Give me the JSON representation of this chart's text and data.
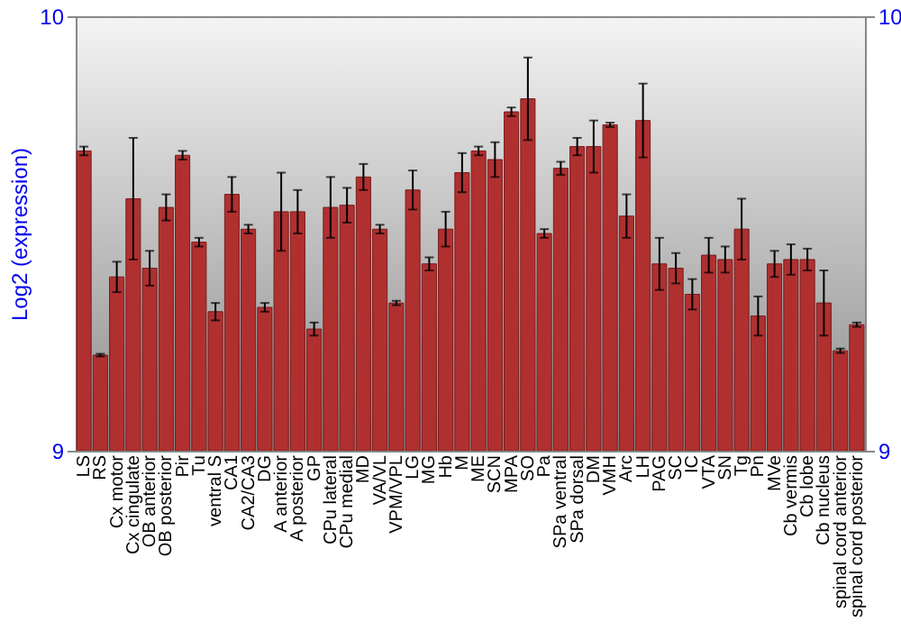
{
  "chart_data": {
    "type": "bar",
    "ylabel": "Log2 (expression)",
    "categories": [
      "LS",
      "RS",
      "Cx motor",
      "Cx cingulate",
      "OB anterior",
      "OB posterior",
      "Pir",
      "Tu",
      "ventral S",
      "CA1",
      "CA2/CA3",
      "DG",
      "A anterior",
      "A posterior",
      "GP",
      "CPu lateral",
      "CPu medial",
      "MD",
      "VA/VL",
      "VPM/VPL",
      "LG",
      "MG",
      "Hb",
      "M",
      "ME",
      "SCN",
      "MPA",
      "SO",
      "Pa",
      "SPa ventral",
      "SPa dorsal",
      "DM",
      "VMH",
      "Arc",
      "LH",
      "PAG",
      "SC",
      "IC",
      "VTA",
      "SN",
      "Tg",
      "Pn",
      "MVe",
      "Cb vermis",
      "Cb lobe",
      "Cb nucleus",
      "spinal cord anterior",
      "spinal cord posterior"
    ],
    "series": [
      {
        "color": "#b03030",
        "values": [
          9.69,
          9.22,
          9.4,
          9.58,
          9.42,
          9.56,
          9.68,
          9.48,
          9.32,
          9.59,
          9.51,
          9.33,
          9.55,
          9.55,
          9.28,
          9.56,
          9.565,
          9.63,
          9.51,
          9.34,
          9.6,
          9.43,
          9.51,
          9.64,
          9.69,
          9.67,
          9.78,
          9.81,
          9.5,
          9.65,
          9.7,
          9.7,
          9.75,
          9.54,
          9.76,
          9.43,
          9.42,
          9.36,
          9.45,
          9.44,
          9.51,
          9.31,
          9.43,
          9.44,
          9.44,
          9.34,
          9.23,
          9.29
        ],
        "errors": [
          0.01,
          0.003,
          0.035,
          0.14,
          0.04,
          0.03,
          0.01,
          0.01,
          0.02,
          0.04,
          0.01,
          0.01,
          0.09,
          0.05,
          0.015,
          0.07,
          0.04,
          0.03,
          0.01,
          0.005,
          0.045,
          0.015,
          0.04,
          0.045,
          0.01,
          0.04,
          0.01,
          0.095,
          0.01,
          0.015,
          0.02,
          0.06,
          0.005,
          0.05,
          0.085,
          0.06,
          0.035,
          0.035,
          0.04,
          0.03,
          0.07,
          0.045,
          0.03,
          0.035,
          0.025,
          0.075,
          0.005,
          0.005
        ]
      }
    ],
    "ylim": [
      9,
      10
    ],
    "yticks": [
      9,
      10
    ],
    "y2lim": [
      9,
      10
    ],
    "y2ticks": [
      9,
      10
    ]
  }
}
